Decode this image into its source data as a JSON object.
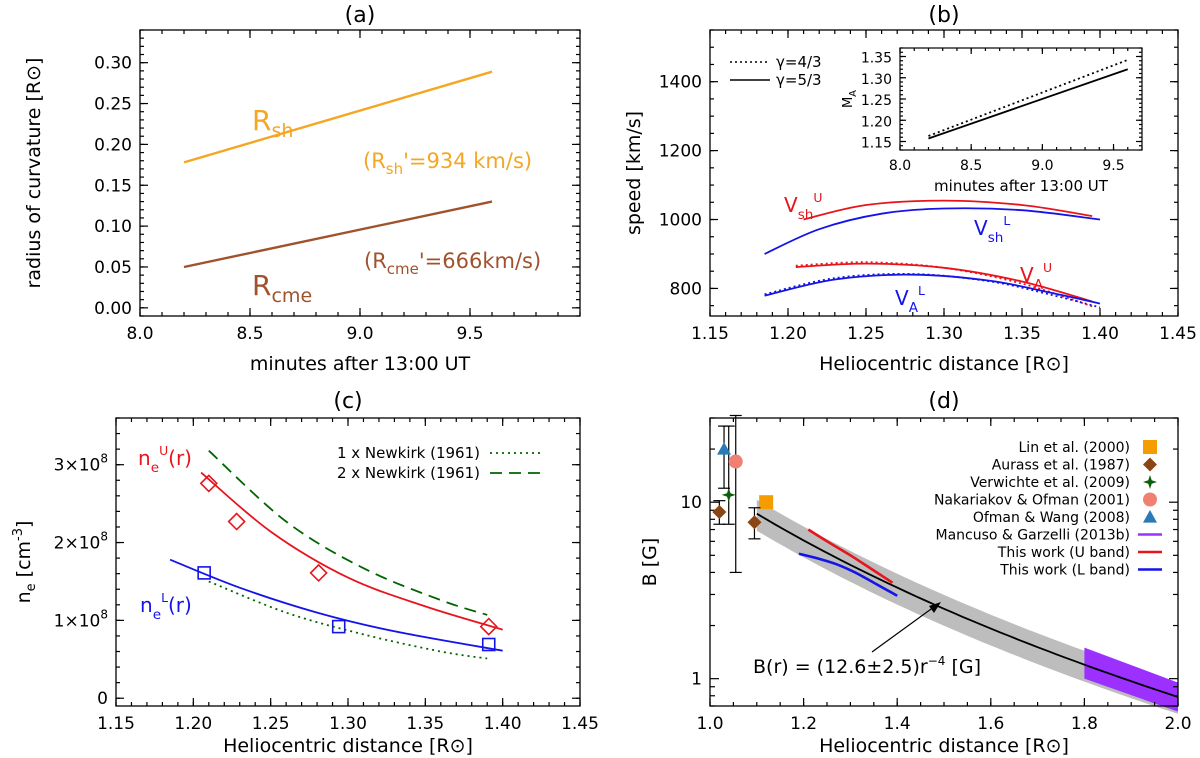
{
  "figure_panels": [
    "(a)",
    "(b)",
    "(c)",
    "(d)"
  ],
  "chart_data": [
    {
      "panel": "(a)",
      "type": "line",
      "title": "(a)",
      "xlabel": "minutes after 13:00 UT",
      "ylabel": "radius of curvature [R⊙]",
      "xlim": [
        8.0,
        10.0
      ],
      "ylim": [
        -0.01,
        0.34
      ],
      "xticks": [
        "8.0",
        "8.5",
        "9.0",
        "9.5"
      ],
      "yticks": [
        "0.00",
        "0.05",
        "0.10",
        "0.15",
        "0.20",
        "0.25",
        "0.30"
      ],
      "series": [
        {
          "name": "R_sh",
          "label_main": "R",
          "label_sub": "sh",
          "color": "#f5a623",
          "x": [
            8.2,
            9.6
          ],
          "y": [
            0.178,
            0.289
          ],
          "annotation": "(R",
          "annotation_sub": "sh",
          "annotation_rest": "'=934 km/s)"
        },
        {
          "name": "R_cme",
          "label_main": "R",
          "label_sub": "cme",
          "color": "#a0522d",
          "x": [
            8.2,
            9.6
          ],
          "y": [
            0.05,
            0.13
          ],
          "annotation": "(R",
          "annotation_sub": "cme",
          "annotation_rest": "'=666km/s)"
        }
      ]
    },
    {
      "panel": "(b)",
      "type": "line",
      "title": "(b)",
      "xlabel": "Heliocentric distance [R⊙]",
      "ylabel": "speed [km/s]",
      "xlim": [
        1.15,
        1.45
      ],
      "ylim": [
        720,
        1550
      ],
      "xticks": [
        "1.15",
        "1.20",
        "1.25",
        "1.30",
        "1.35",
        "1.40",
        "1.45"
      ],
      "yticks": [
        "800",
        "1000",
        "1200",
        "1400"
      ],
      "legend": [
        "γ=4/3",
        "γ=5/3"
      ],
      "series": [
        {
          "name": "V_sh U",
          "label_main": "V",
          "label_sub": "sh",
          "label_sup": "U",
          "color": "#e8141c",
          "x": [
            1.21,
            1.25,
            1.3,
            1.35,
            1.395
          ],
          "y": [
            1000,
            1042,
            1055,
            1042,
            1010
          ]
        },
        {
          "name": "V_sh L",
          "label_main": "V",
          "label_sub": "sh",
          "label_sup": "L",
          "color": "#1414e8",
          "x": [
            1.185,
            1.22,
            1.26,
            1.3,
            1.35,
            1.4
          ],
          "y": [
            900,
            972,
            1017,
            1032,
            1027,
            1000
          ]
        },
        {
          "name": "V_A U (gamma=5/3)",
          "label_main": "V",
          "label_sub": "A",
          "label_sup": "U",
          "color": "#e8141c",
          "x": [
            1.205,
            1.25,
            1.3,
            1.35,
            1.395
          ],
          "y": [
            862,
            872,
            860,
            820,
            762
          ]
        },
        {
          "name": "V_A U (gamma=4/3)",
          "color": "#e8141c",
          "dotted": true,
          "x": [
            1.205,
            1.25,
            1.3,
            1.35,
            1.395
          ],
          "y": [
            866,
            876,
            860,
            814,
            748
          ]
        },
        {
          "name": "V_A L (gamma=5/3)",
          "label_main": "V",
          "label_sub": "A",
          "label_sup": "L",
          "color": "#1414e8",
          "x": [
            1.185,
            1.23,
            1.28,
            1.33,
            1.37,
            1.4
          ],
          "y": [
            779,
            826,
            840,
            822,
            786,
            756
          ]
        },
        {
          "name": "V_A L (gamma=4/3)",
          "color": "#1414e8",
          "dotted": true,
          "x": [
            1.185,
            1.23,
            1.28,
            1.33,
            1.37,
            1.4
          ],
          "y": [
            783,
            830,
            842,
            820,
            780,
            745
          ]
        }
      ],
      "inset": {
        "xlabel": "minutes after 13:00 UT",
        "ylabel": "M_A",
        "xlim": [
          8.0,
          9.7
        ],
        "ylim": [
          1.13,
          1.37
        ],
        "xticks": [
          "8.0",
          "8.5",
          "9.0",
          "9.5"
        ],
        "yticks": [
          "1.15",
          "1.20",
          "1.25",
          "1.30",
          "1.35"
        ],
        "series": [
          {
            "name": "γ=4/3",
            "dotted": true,
            "x": [
              8.2,
              9.6
            ],
            "y": [
              1.163,
              1.342
            ]
          },
          {
            "name": "γ=5/3",
            "dotted": false,
            "x": [
              8.2,
              9.6
            ],
            "y": [
              1.157,
              1.32
            ]
          }
        ]
      }
    },
    {
      "panel": "(c)",
      "type": "line",
      "title": "(c)",
      "xlabel": "Heliocentric distance [R⊙]",
      "ylabel": "n",
      "ylabel_sub": "e",
      "ylabel_rest": " [cm",
      "ylabel_sup": "-3",
      "ylabel_end": "]",
      "xlim": [
        1.15,
        1.45
      ],
      "ylim": [
        -0.1,
        3.6
      ],
      "xticks": [
        "1.15",
        "1.20",
        "1.25",
        "1.30",
        "1.35",
        "1.40",
        "1.45"
      ],
      "yticks": [
        {
          "value": 0,
          "label": "0"
        },
        {
          "value": 1,
          "label": "1×10",
          "exp": "8"
        },
        {
          "value": 2,
          "label": "2×10",
          "exp": "8"
        },
        {
          "value": 3,
          "label": "3×10",
          "exp": "8"
        }
      ],
      "legend": [
        "1 x Newkirk (1961)",
        "2 x Newkirk (1961)"
      ],
      "series": [
        {
          "name": "n_e U fit",
          "label_main": "n",
          "label_sub": "e",
          "label_sup": "U",
          "label_rest": "(r)",
          "color": "#e8141c",
          "x": [
            1.205,
            1.25,
            1.3,
            1.35,
            1.4
          ],
          "y": [
            2.9,
            2.14,
            1.55,
            1.18,
            0.88
          ]
        },
        {
          "name": "n_e L fit",
          "label_main": "n",
          "label_sub": "e",
          "label_sup": "L",
          "label_rest": "(r)",
          "color": "#1414e8",
          "x": [
            1.185,
            1.23,
            1.28,
            1.33,
            1.4
          ],
          "y": [
            1.78,
            1.42,
            1.1,
            0.86,
            0.61
          ]
        },
        {
          "name": "U data",
          "marker": "diamond",
          "color": "#e8141c",
          "x": [
            1.21,
            1.228,
            1.281,
            1.391
          ],
          "y": [
            2.76,
            2.27,
            1.61,
            0.92
          ]
        },
        {
          "name": "L data",
          "marker": "square",
          "color": "#1414e8",
          "x": [
            1.207,
            1.294,
            1.391
          ],
          "y": [
            1.61,
            0.92,
            0.69
          ]
        },
        {
          "name": "1 x Newkirk (1961)",
          "color": "#006400",
          "dotted": true,
          "x": [
            1.21,
            1.26,
            1.31,
            1.36,
            1.39
          ],
          "y": [
            1.5,
            1.1,
            0.82,
            0.6,
            0.51
          ]
        },
        {
          "name": "2 x Newkirk (1961)",
          "color": "#006400",
          "dashed": true,
          "x": [
            1.21,
            1.26,
            1.31,
            1.36,
            1.39
          ],
          "y": [
            3.18,
            2.27,
            1.67,
            1.26,
            1.07
          ]
        }
      ]
    },
    {
      "panel": "(d)",
      "type": "line",
      "title": "(d)",
      "xlabel": "Heliocentric distance [R⊙]",
      "ylabel": "B [G]",
      "xlim": [
        1.0,
        2.0
      ],
      "ylim_log": [
        0.7,
        30
      ],
      "xticks": [
        "1.0",
        "1.2",
        "1.4",
        "1.6",
        "1.8",
        "2.0"
      ],
      "yticks": [
        {
          "value": 1,
          "label": "1"
        },
        {
          "value": 10,
          "label": "10"
        }
      ],
      "fit_annotation": "B(r) = (12.6±2.5)r",
      "fit_annotation_sup": "−4",
      "fit_annotation_unit": " [G]",
      "fit": {
        "coefficient": 12.6,
        "uncertainty": 2.5,
        "exponent": -4
      },
      "legend": [
        {
          "label": "Lin et al. (2000)",
          "marker": "square",
          "color": "#f59c00"
        },
        {
          "label": "Aurass et al. (1987)",
          "marker": "diamond",
          "color": "#8b4513"
        },
        {
          "label": "Verwichte et al. (2009)",
          "marker": "star",
          "color": "#0b5e0b"
        },
        {
          "label": "Nakariakov & Ofman (2001)",
          "marker": "circle",
          "color": "#f08070"
        },
        {
          "label": "Ofman & Wang (2008)",
          "marker": "triangle",
          "color": "#2a7ab8"
        },
        {
          "label": "Mancuso & Garzelli (2013b)",
          "marker": "line",
          "color": "#9b30ff"
        },
        {
          "label": "This work (U band)",
          "marker": "line",
          "color": "#e8141c"
        },
        {
          "label": "This work (L band)",
          "marker": "line",
          "color": "#1414e8"
        }
      ],
      "points": [
        {
          "name": "Lin et al. (2000)",
          "marker": "square",
          "color": "#f59c00",
          "x": 1.12,
          "y": 10.0,
          "yerr": [
            9.3,
            10.7
          ]
        },
        {
          "name": "Aurass et al. (1987)",
          "marker": "diamond",
          "color": "#8b4513",
          "x": 1.02,
          "y": 8.8,
          "yerr": [
            7.5,
            10.2
          ]
        },
        {
          "name": "Aurass et al. (1987)",
          "marker": "diamond",
          "color": "#8b4513",
          "x": 1.095,
          "y": 7.7,
          "yerr": [
            6.2,
            9.3
          ]
        },
        {
          "name": "Verwichte et al. (2009)",
          "marker": "star",
          "color": "#0b5e0b",
          "x": 1.04,
          "y": 11.0,
          "yerr": [
            7.5,
            27
          ]
        },
        {
          "name": "Nakariakov & Ofman (2001)",
          "marker": "circle",
          "color": "#f08070",
          "x": 1.055,
          "y": 17.0,
          "yerr": [
            4.0,
            31
          ]
        },
        {
          "name": "Ofman & Wang (2008)",
          "marker": "triangle",
          "color": "#2a7ab8",
          "x": 1.03,
          "y": 20.0,
          "yerr": [
            12,
            27
          ]
        }
      ],
      "series": [
        {
          "name": "This work (U band)",
          "color": "#e8141c",
          "x": [
            1.21,
            1.25,
            1.3,
            1.35,
            1.39
          ],
          "y": [
            7.0,
            6.0,
            5.0,
            4.1,
            3.5
          ]
        },
        {
          "name": "This work (L band)",
          "color": "#1414e8",
          "x": [
            1.19,
            1.23,
            1.27,
            1.31,
            1.35,
            1.4
          ],
          "y": [
            5.1,
            4.8,
            4.45,
            4.0,
            3.5,
            2.95
          ]
        },
        {
          "name": "Mancuso & Garzelli (2013b)",
          "color": "#9b30ff",
          "band": true,
          "x": [
            1.8,
            2.0
          ],
          "y_low": [
            1.0,
            0.65
          ],
          "y_high": [
            1.5,
            0.95
          ]
        }
      ]
    }
  ]
}
